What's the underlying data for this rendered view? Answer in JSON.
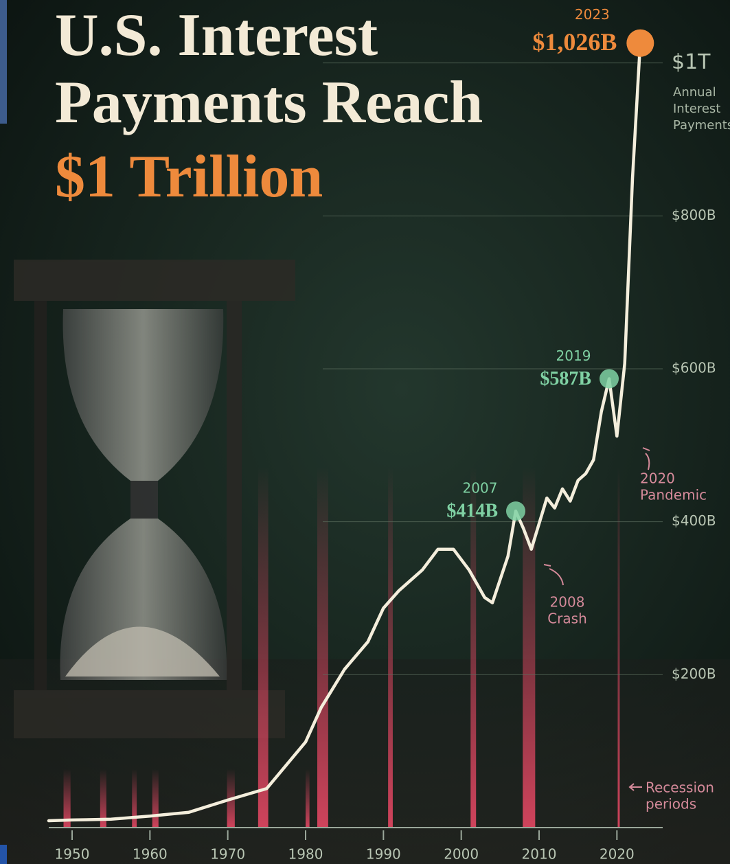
{
  "chart_data": {
    "type": "line",
    "title_lines": [
      "U.S. Interest",
      "Payments Reach",
      "$1 Trillion"
    ],
    "y_axis_label_lines": [
      "Annual",
      "Interest",
      "Payments"
    ],
    "x": [
      1947,
      1950,
      1955,
      1960,
      1965,
      1970,
      1975,
      1980,
      1982,
      1985,
      1988,
      1990,
      1992,
      1995,
      1997,
      1999,
      2001,
      2003,
      2004,
      2006,
      2007,
      2008,
      2009,
      2011,
      2012,
      2013,
      2014,
      2015,
      2016,
      2017,
      2018,
      2019,
      2020,
      2021,
      2022,
      2023
    ],
    "y": [
      9,
      10,
      11,
      15,
      20,
      36,
      51,
      112,
      157,
      207,
      243,
      287,
      310,
      337,
      364,
      364,
      337,
      301,
      294,
      355,
      414,
      391,
      364,
      431,
      418,
      443,
      427,
      454,
      463,
      481,
      544,
      587,
      512,
      607,
      849,
      1026
    ],
    "color": "#f4eedc",
    "xlim": [
      1947,
      2025
    ],
    "xticks": [
      1950,
      1960,
      1970,
      1980,
      1990,
      2000,
      2010,
      2020
    ],
    "ylim": [
      0,
      1050
    ],
    "yticks": [
      {
        "value": 200,
        "label": "$200B"
      },
      {
        "value": 400,
        "label": "$400B"
      },
      {
        "value": 600,
        "label": "$600B"
      },
      {
        "value": 800,
        "label": "$800B"
      },
      {
        "value": 1000,
        "label": "$1T"
      }
    ],
    "grid": true,
    "annotations": [
      {
        "x": 2007,
        "y": 414,
        "label": "$414B",
        "color": "#7fd1a3"
      },
      {
        "x": 2019,
        "y": 587,
        "label": "$587B",
        "color": "#7fd1a3"
      },
      {
        "x": 2023,
        "y": 1026,
        "label": "$1,026B",
        "color": "#ee8a3c"
      }
    ],
    "events": [
      {
        "lines": [
          "2008",
          "Crash"
        ]
      },
      {
        "lines": [
          "2020",
          "Pandemic"
        ]
      }
    ],
    "recession_label_lines": [
      "Recession",
      "periods"
    ],
    "recession_color": "#d9455f",
    "recessions": [
      {
        "start": 1948.9,
        "end": 1949.8
      },
      {
        "start": 1953.6,
        "end": 1954.4
      },
      {
        "start": 1957.7,
        "end": 1958.3
      },
      {
        "start": 1960.3,
        "end": 1961.1
      },
      {
        "start": 1969.9,
        "end": 1970.9
      },
      {
        "start": 1973.9,
        "end": 1975.2
      },
      {
        "start": 1980.0,
        "end": 1980.5
      },
      {
        "start": 1981.5,
        "end": 1982.9
      },
      {
        "start": 1990.6,
        "end": 1991.2
      },
      {
        "start": 2001.2,
        "end": 2001.9
      },
      {
        "start": 2007.9,
        "end": 2009.5
      },
      {
        "start": 2020.1,
        "end": 2020.3
      }
    ]
  }
}
